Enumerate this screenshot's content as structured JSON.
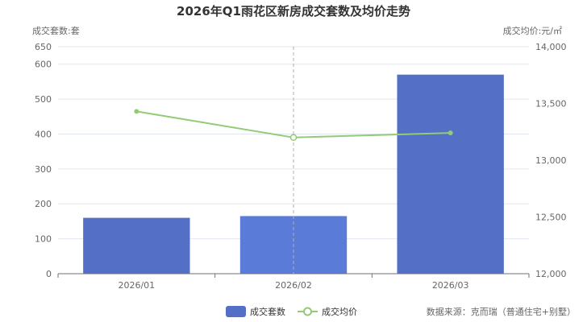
{
  "chart_data": {
    "type": "bar",
    "title": "2026年Q1雨花区新房成交套数及均价走势",
    "left_axis_label": "成交套数:套",
    "right_axis_label": "成交均价:元/㎡",
    "categories": [
      "2026/01",
      "2026/02",
      "2026/03"
    ],
    "series": [
      {
        "name": "成交套数",
        "type": "bar",
        "axis": "left",
        "values": [
          160,
          165,
          570
        ],
        "color": "#5470c6"
      },
      {
        "name": "成交均价",
        "type": "line",
        "axis": "right",
        "values": [
          13430,
          13200,
          13240
        ],
        "color": "#91cc75"
      }
    ],
    "left_ylim": [
      0,
      650
    ],
    "left_ticks": [
      0,
      100,
      200,
      300,
      400,
      500,
      600,
      650
    ],
    "right_ylim": [
      12000,
      14000
    ],
    "right_ticks": [
      12000,
      12500,
      13000,
      13500,
      14000
    ],
    "highlighted_category_index": 1,
    "legend_position": "bottom-center",
    "source": "数据来源：克而瑞（普通住宅+别墅）"
  }
}
